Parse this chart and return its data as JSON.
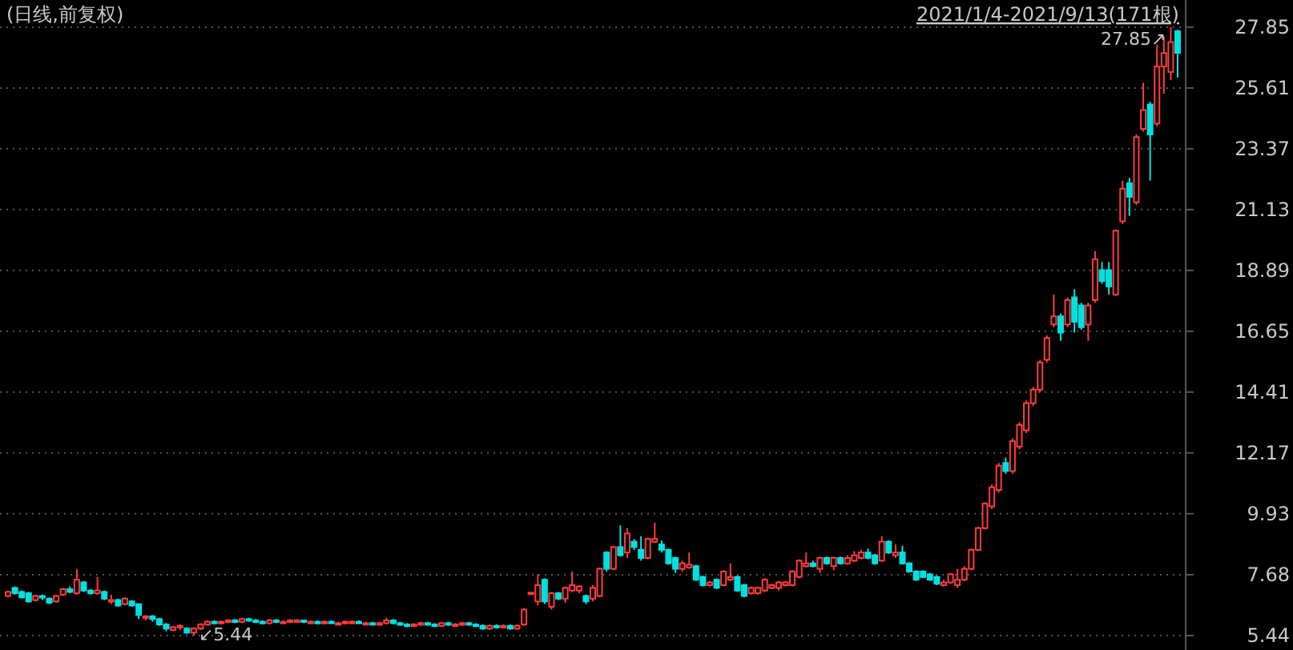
{
  "chart_data": {
    "type": "candlestick",
    "title": "(日线,前复权)",
    "subtitle": "2021/1/4-2021/9/13(171根)",
    "categories": [
      null,
      null,
      null,
      null,
      null,
      null,
      null,
      null,
      null,
      null,
      null,
      null,
      null,
      null,
      null,
      null,
      null,
      null,
      null,
      null,
      null,
      null,
      null,
      null,
      null,
      null,
      null,
      null,
      null,
      null,
      null,
      null,
      null,
      null,
      null,
      null,
      null,
      null,
      null,
      null,
      null,
      null,
      null,
      null,
      null,
      null,
      null,
      null,
      null,
      null,
      null,
      null,
      null,
      null,
      null,
      null,
      null,
      null,
      null,
      null,
      null,
      null,
      null,
      null,
      null,
      null,
      null,
      null,
      null,
      null,
      null,
      null,
      null,
      null,
      null,
      null,
      null,
      null,
      null,
      null,
      null,
      null,
      null,
      null,
      null,
      null,
      null,
      null,
      null,
      null,
      null,
      null,
      null,
      null,
      null,
      null,
      null,
      null,
      null,
      null,
      null,
      null,
      null,
      null,
      null,
      null,
      null,
      null,
      null,
      null,
      null,
      null,
      null,
      null,
      null,
      null,
      null,
      null,
      null,
      null,
      null,
      null,
      null,
      null,
      null,
      null,
      null,
      null,
      null,
      null,
      null,
      null,
      null,
      null,
      null,
      null,
      null,
      null,
      null,
      null,
      null,
      null,
      null,
      null,
      null,
      null,
      null,
      null,
      null,
      null,
      null,
      null,
      null,
      null,
      null,
      null,
      null,
      null,
      null,
      null,
      null,
      null,
      null,
      null,
      null,
      null,
      null,
      null,
      null,
      null,
      null
    ],
    "ohlc": [
      [
        6.9,
        7.1,
        6.85,
        7.05
      ],
      [
        7.2,
        7.25,
        6.95,
        7.0
      ],
      [
        7.05,
        7.1,
        6.8,
        6.85
      ],
      [
        7.0,
        7.05,
        6.65,
        6.7
      ],
      [
        6.75,
        6.95,
        6.7,
        6.9
      ],
      [
        6.9,
        6.95,
        6.75,
        6.85
      ],
      [
        6.8,
        6.85,
        6.6,
        6.65
      ],
      [
        6.7,
        6.95,
        6.65,
        6.9
      ],
      [
        6.95,
        7.2,
        6.9,
        7.15
      ],
      [
        7.15,
        7.25,
        7.0,
        7.05
      ],
      [
        7.0,
        7.9,
        6.95,
        7.5
      ],
      [
        7.4,
        7.45,
        7.05,
        7.1
      ],
      [
        7.1,
        7.15,
        6.95,
        7.0
      ],
      [
        7.0,
        7.6,
        6.95,
        7.1
      ],
      [
        7.05,
        7.1,
        6.75,
        6.8
      ],
      [
        6.75,
        6.95,
        6.6,
        6.75
      ],
      [
        6.75,
        6.8,
        6.5,
        6.55
      ],
      [
        6.6,
        6.85,
        6.55,
        6.8
      ],
      [
        6.7,
        6.75,
        6.5,
        6.55
      ],
      [
        6.6,
        6.6,
        6.05,
        6.2
      ],
      [
        6.1,
        6.2,
        6.0,
        6.15
      ],
      [
        6.15,
        6.2,
        5.95,
        6.05
      ],
      [
        6.05,
        6.1,
        5.8,
        5.85
      ],
      [
        5.85,
        5.9,
        5.6,
        5.7
      ],
      [
        5.65,
        5.8,
        5.6,
        5.75
      ],
      [
        5.75,
        5.85,
        5.65,
        5.8
      ],
      [
        5.7,
        5.75,
        5.5,
        5.55
      ],
      [
        5.55,
        5.75,
        5.44,
        5.7
      ],
      [
        5.7,
        5.9,
        5.65,
        5.85
      ],
      [
        5.85,
        6.0,
        5.8,
        5.95
      ],
      [
        5.95,
        6.0,
        5.85,
        5.9
      ],
      [
        5.9,
        6.0,
        5.85,
        5.95
      ],
      [
        5.95,
        6.05,
        5.9,
        6.0
      ],
      [
        6.0,
        6.05,
        5.9,
        5.95
      ],
      [
        5.95,
        6.1,
        5.9,
        6.05
      ],
      [
        6.05,
        6.1,
        5.95,
        6.0
      ],
      [
        6.0,
        6.05,
        5.9,
        5.95
      ],
      [
        5.95,
        6.0,
        5.85,
        5.9
      ],
      [
        5.9,
        6.05,
        5.85,
        6.0
      ],
      [
        6.0,
        6.05,
        5.9,
        5.95
      ],
      [
        5.95,
        6.0,
        5.9,
        5.95
      ],
      [
        5.95,
        6.05,
        5.9,
        6.0
      ],
      [
        6.0,
        6.05,
        5.95,
        6.0
      ],
      [
        6.0,
        6.0,
        5.9,
        5.95
      ],
      [
        5.95,
        6.0,
        5.9,
        5.95
      ],
      [
        5.95,
        6.0,
        5.85,
        5.9
      ],
      [
        5.9,
        6.0,
        5.85,
        5.95
      ],
      [
        5.95,
        6.0,
        5.9,
        5.9
      ],
      [
        5.9,
        5.95,
        5.85,
        5.9
      ],
      [
        5.9,
        6.0,
        5.85,
        5.95
      ],
      [
        5.95,
        6.0,
        5.9,
        5.95
      ],
      [
        5.95,
        6.0,
        5.9,
        5.9
      ],
      [
        5.9,
        5.95,
        5.85,
        5.9
      ],
      [
        5.9,
        5.95,
        5.85,
        5.85
      ],
      [
        5.85,
        5.95,
        5.8,
        5.9
      ],
      [
        5.9,
        6.1,
        5.85,
        6.0
      ],
      [
        6.0,
        6.05,
        5.85,
        5.9
      ],
      [
        5.9,
        5.95,
        5.8,
        5.85
      ],
      [
        5.85,
        5.9,
        5.75,
        5.8
      ],
      [
        5.8,
        5.9,
        5.75,
        5.85
      ],
      [
        5.85,
        5.95,
        5.8,
        5.9
      ],
      [
        5.9,
        5.95,
        5.8,
        5.85
      ],
      [
        5.85,
        5.9,
        5.75,
        5.8
      ],
      [
        5.8,
        5.95,
        5.75,
        5.9
      ],
      [
        5.9,
        5.95,
        5.8,
        5.85
      ],
      [
        5.85,
        5.9,
        5.8,
        5.85
      ],
      [
        5.85,
        5.95,
        5.8,
        5.9
      ],
      [
        5.9,
        5.95,
        5.8,
        5.85
      ],
      [
        5.85,
        5.9,
        5.75,
        5.8
      ],
      [
        5.8,
        5.85,
        5.65,
        5.7
      ],
      [
        5.7,
        5.85,
        5.65,
        5.8
      ],
      [
        5.8,
        5.85,
        5.7,
        5.75
      ],
      [
        5.75,
        5.85,
        5.7,
        5.8
      ],
      [
        5.8,
        5.85,
        5.65,
        5.7
      ],
      [
        5.7,
        5.85,
        5.65,
        5.8
      ],
      [
        5.85,
        6.45,
        5.8,
        6.4
      ],
      [
        7.0,
        7.05,
        6.95,
        7.02
      ],
      [
        6.7,
        7.7,
        6.55,
        7.3
      ],
      [
        7.5,
        7.55,
        6.6,
        6.7
      ],
      [
        6.5,
        7.05,
        6.4,
        7.0
      ],
      [
        7.0,
        7.05,
        6.75,
        6.8
      ],
      [
        6.8,
        7.25,
        6.65,
        7.2
      ],
      [
        7.1,
        7.8,
        7.05,
        7.3
      ],
      [
        7.1,
        7.3,
        7.0,
        7.25
      ],
      [
        6.9,
        6.95,
        6.6,
        6.7
      ],
      [
        6.8,
        7.3,
        6.7,
        7.2
      ],
      [
        6.9,
        7.95,
        6.85,
        7.9
      ],
      [
        8.5,
        8.55,
        7.8,
        7.9
      ],
      [
        7.9,
        8.75,
        7.85,
        8.7
      ],
      [
        8.7,
        9.5,
        8.35,
        8.4
      ],
      [
        8.5,
        9.4,
        8.3,
        9.2
      ],
      [
        8.9,
        9.0,
        8.6,
        8.7
      ],
      [
        8.6,
        9.1,
        8.2,
        8.3
      ],
      [
        8.3,
        9.05,
        8.25,
        9.0
      ],
      [
        8.9,
        9.6,
        8.85,
        9.0
      ],
      [
        8.8,
        8.95,
        8.5,
        8.6
      ],
      [
        8.6,
        8.65,
        8.05,
        8.1
      ],
      [
        8.3,
        8.35,
        7.75,
        7.9
      ],
      [
        7.9,
        8.2,
        7.8,
        8.1
      ],
      [
        7.95,
        8.5,
        7.9,
        8.05
      ],
      [
        8.0,
        8.05,
        7.45,
        7.5
      ],
      [
        7.6,
        7.65,
        7.25,
        7.3
      ],
      [
        7.3,
        7.45,
        7.25,
        7.4
      ],
      [
        7.5,
        7.55,
        7.15,
        7.2
      ],
      [
        7.3,
        7.85,
        7.25,
        7.8
      ],
      [
        7.5,
        8.1,
        7.45,
        7.6
      ],
      [
        7.6,
        7.65,
        7.05,
        7.1
      ],
      [
        7.3,
        7.35,
        6.85,
        6.9
      ],
      [
        7.0,
        7.25,
        6.95,
        7.2
      ],
      [
        7.0,
        7.25,
        6.95,
        7.2
      ],
      [
        7.1,
        7.55,
        7.05,
        7.5
      ],
      [
        7.2,
        7.35,
        7.15,
        7.3
      ],
      [
        7.2,
        7.45,
        7.1,
        7.4
      ],
      [
        7.3,
        7.45,
        7.25,
        7.4
      ],
      [
        7.3,
        7.85,
        7.25,
        7.8
      ],
      [
        7.6,
        8.25,
        7.55,
        8.2
      ],
      [
        8.0,
        8.5,
        7.95,
        8.1
      ],
      [
        8.1,
        8.2,
        7.95,
        8.0
      ],
      [
        7.9,
        8.35,
        7.75,
        8.3
      ],
      [
        8.3,
        8.35,
        8.05,
        8.1
      ],
      [
        8.0,
        8.35,
        7.85,
        8.3
      ],
      [
        8.3,
        8.35,
        8.05,
        8.1
      ],
      [
        8.1,
        8.4,
        8.05,
        8.3
      ],
      [
        8.2,
        8.55,
        8.15,
        8.4
      ],
      [
        8.3,
        8.6,
        8.25,
        8.5
      ],
      [
        8.5,
        8.65,
        8.25,
        8.3
      ],
      [
        8.4,
        8.45,
        8.05,
        8.1
      ],
      [
        8.2,
        9.1,
        8.15,
        8.9
      ],
      [
        8.9,
        8.95,
        8.45,
        8.5
      ],
      [
        8.4,
        8.8,
        8.3,
        8.5
      ],
      [
        8.5,
        8.75,
        8.05,
        8.1
      ],
      [
        8.1,
        8.15,
        7.75,
        7.8
      ],
      [
        7.8,
        7.85,
        7.45,
        7.5
      ],
      [
        7.8,
        7.85,
        7.55,
        7.6
      ],
      [
        7.7,
        7.75,
        7.45,
        7.5
      ],
      [
        7.6,
        7.65,
        7.3,
        7.35
      ],
      [
        7.3,
        7.5,
        7.25,
        7.4
      ],
      [
        7.4,
        7.75,
        7.35,
        7.7
      ],
      [
        7.3,
        7.9,
        7.2,
        7.5
      ],
      [
        7.5,
        8.0,
        7.45,
        7.9
      ],
      [
        7.9,
        8.65,
        7.85,
        8.6
      ],
      [
        8.6,
        9.45,
        8.55,
        9.4
      ],
      [
        9.4,
        10.35,
        9.35,
        10.3
      ],
      [
        10.2,
        11.0,
        10.1,
        10.9
      ],
      [
        10.8,
        11.8,
        10.7,
        11.7
      ],
      [
        11.8,
        12.0,
        11.4,
        11.5
      ],
      [
        11.5,
        12.7,
        11.4,
        12.6
      ],
      [
        12.4,
        13.3,
        12.3,
        13.2
      ],
      [
        13.0,
        14.1,
        12.9,
        14.0
      ],
      [
        14.0,
        14.6,
        13.9,
        14.5
      ],
      [
        14.5,
        15.6,
        14.4,
        15.5
      ],
      [
        15.6,
        16.5,
        15.5,
        16.4
      ],
      [
        16.9,
        18.0,
        16.8,
        17.2
      ],
      [
        17.2,
        17.3,
        16.3,
        16.6
      ],
      [
        16.9,
        17.9,
        16.8,
        17.8
      ],
      [
        17.9,
        18.2,
        16.6,
        17.0
      ],
      [
        17.6,
        17.7,
        16.7,
        16.8
      ],
      [
        16.9,
        17.7,
        16.3,
        17.6
      ],
      [
        17.8,
        19.6,
        17.7,
        19.3
      ],
      [
        18.9,
        19.2,
        18.4,
        18.5
      ],
      [
        18.9,
        19.2,
        18.0,
        18.3
      ],
      [
        18.0,
        20.4,
        17.95,
        20.35
      ],
      [
        20.7,
        22.2,
        20.6,
        21.9
      ],
      [
        22.1,
        22.3,
        20.9,
        21.6
      ],
      [
        21.4,
        23.9,
        21.3,
        23.8
      ],
      [
        24.1,
        25.8,
        24.0,
        24.8
      ],
      [
        25.0,
        25.1,
        22.2,
        23.9
      ],
      [
        24.3,
        27.2,
        24.2,
        26.4
      ],
      [
        26.4,
        27.5,
        25.4,
        26.9
      ],
      [
        26.2,
        27.85,
        25.9,
        27.3
      ],
      [
        27.7,
        27.75,
        26.0,
        26.9
      ]
    ],
    "ylim": [
      4.91,
      28.85
    ],
    "yticks": [
      5.44,
      7.68,
      9.93,
      12.17,
      14.41,
      16.65,
      18.89,
      21.13,
      23.37,
      25.61,
      27.85
    ],
    "grid": "y",
    "tick_labels": "y",
    "annotations": [
      "27.85↗",
      "↙5.44"
    ]
  }
}
